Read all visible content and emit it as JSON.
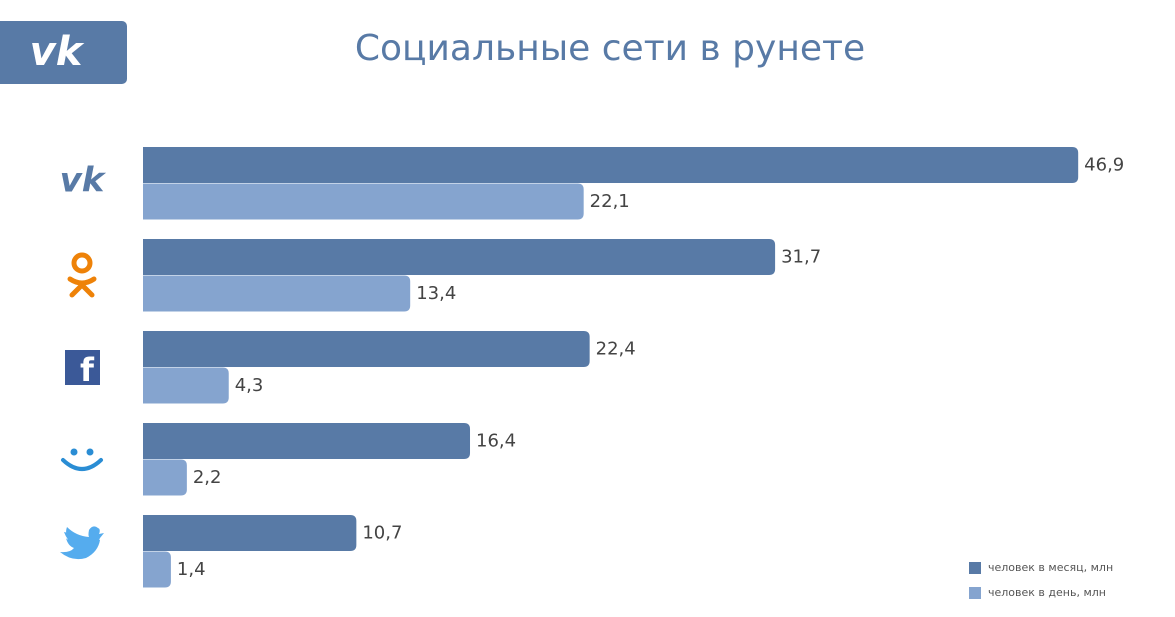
{
  "chart_data": {
    "type": "hbar",
    "title": "Социальные сети в рунете",
    "categories": [
      null,
      null,
      null,
      null,
      null
    ],
    "series": [
      {
        "name": "человек в месяц, млн",
        "color": "#587aa6",
        "values": [
          46.9,
          31.7,
          22.4,
          16.4,
          10.7
        ],
        "value_labels": [
          "46,9",
          "31,7",
          "22,4",
          "16,4",
          "10,7"
        ]
      },
      {
        "name": "человек в день, млн",
        "color": "#85a4cf",
        "values": [
          22.1,
          13.4,
          4.3,
          2.2,
          1.4
        ],
        "value_labels": [
          "22,1",
          "13,4",
          "4,3",
          "2,2",
          "1,4"
        ]
      }
    ],
    "legend": "bottom-right"
  }
}
